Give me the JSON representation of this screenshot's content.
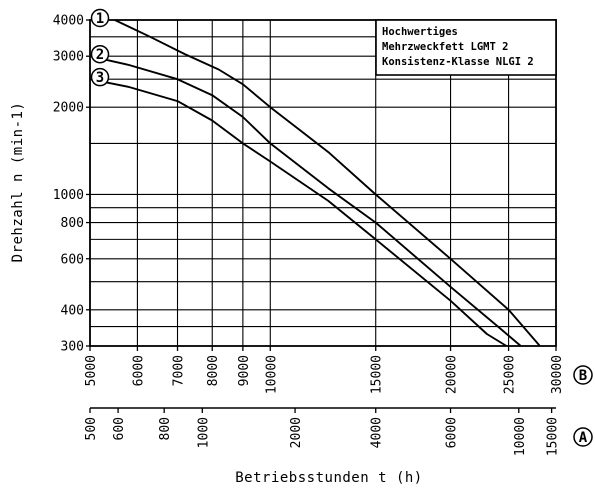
{
  "chart_data": {
    "type": "line",
    "title": "",
    "ylabel": "Drehzahl n (min-1)",
    "xlabel": "Betriebsstunden t (h)",
    "yscale": "log",
    "xscale": "log",
    "ylim": [
      300,
      4000
    ],
    "xlim": [
      5000,
      30000
    ],
    "grid": true,
    "y_ticks": [
      "300",
      "400",
      "600",
      "800",
      "1000",
      "2000",
      "3000",
      "4000"
    ],
    "y_gridlines": [
      300,
      350,
      400,
      500,
      600,
      700,
      800,
      900,
      1000,
      1500,
      2000,
      2500,
      3000,
      3500,
      4000
    ],
    "x_ticks_B": [
      "5000",
      "6000",
      "7000",
      "8000",
      "9000",
      "10000",
      "15000",
      "20000",
      "25000",
      "30000"
    ],
    "x_ticks_A": [
      "500",
      "600",
      "800",
      "1000",
      "2000",
      "4000",
      "6000",
      "10000",
      "15000"
    ],
    "x_ticks_A_positions_B": [
      5000,
      5570,
      6650,
      7700,
      11000,
      15000,
      20000,
      26000,
      29500
    ],
    "scale_markers": {
      "B": "B",
      "A": "A"
    },
    "legend_box": [
      "Hochwertiges",
      "Mehrzweckfett LGMT 2",
      "Konsistenz-Klasse NLGI 2"
    ],
    "series": [
      {
        "name": "1",
        "x": [
          5500,
          6300,
          7200,
          8200,
          9000,
          10000,
          12500,
          15000,
          20000,
          25000,
          28200
        ],
        "y": [
          4000,
          3500,
          3050,
          2700,
          2400,
          2000,
          1400,
          1000,
          600,
          400,
          300
        ]
      },
      {
        "name": "2",
        "x": [
          5000,
          5800,
          7000,
          8000,
          9000,
          10000,
          12500,
          15000,
          20000,
          24000,
          26200
        ],
        "y": [
          3000,
          2800,
          2500,
          2200,
          1850,
          1500,
          1050,
          800,
          480,
          350,
          300
        ]
      },
      {
        "name": "3",
        "x": [
          5000,
          5800,
          7000,
          8000,
          9000,
          10000,
          12500,
          15000,
          20000,
          23000,
          24800
        ],
        "y": [
          2500,
          2350,
          2100,
          1800,
          1500,
          1300,
          950,
          700,
          430,
          330,
          300
        ]
      }
    ]
  }
}
